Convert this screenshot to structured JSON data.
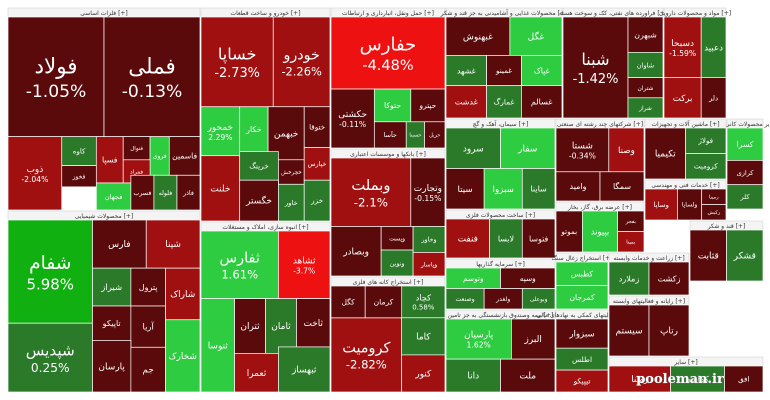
{
  "chart_data": {
    "type": "heatmap",
    "subtype": "treemap",
    "colors": {
      "strong_positive": "#10b010",
      "positive": "#2a7a2a",
      "light_positive": "#2ecc40",
      "neutral": "#888888",
      "negative": "#a01010",
      "dark_negative": "#5a0a0a",
      "strong_negative": "#ee1111"
    },
    "sectors": [
      {
        "title": "[+] فلزات اساسی",
        "tiles": [
          {
            "label": "فولاد",
            "change": "-1.05%",
            "change_value": -1.05
          },
          {
            "label": "فملی",
            "change": "-0.13%",
            "change_value": -0.13
          },
          {
            "label": "ذوب",
            "change": "-2.04%",
            "change_value": -2.04
          },
          {
            "label": "کاوه",
            "change": "",
            "change_value": 1.2
          },
          {
            "label": "فخوز",
            "change": "",
            "change_value": -0.8
          },
          {
            "label": "فسپا",
            "change": "",
            "change_value": -1.5
          },
          {
            "label": "فنوال",
            "change": "",
            "change_value": -0.5
          },
          {
            "label": "فروی",
            "change": "",
            "change_value": 2.0
          },
          {
            "label": "فاسمین",
            "change": "",
            "change_value": -1.1
          },
          {
            "label": "فمراد",
            "change": "",
            "change_value": -2.1
          },
          {
            "label": "فجهان",
            "change": "",
            "change_value": 1.4
          },
          {
            "label": "فسرب",
            "change": "",
            "change_value": -0.4
          },
          {
            "label": "فلوله",
            "change": "",
            "change_value": 0.6
          },
          {
            "label": "فاذر",
            "change": "",
            "change_value": -0.9
          }
        ]
      },
      {
        "title": "[+] خودرو و ساخت قطعات",
        "tiles": [
          {
            "label": "خساپا",
            "change": "-2.73%",
            "change_value": -2.73
          },
          {
            "label": "خودرو",
            "change": "-2.26%",
            "change_value": -2.26
          },
          {
            "label": "خمحور",
            "change": "2.29%",
            "change_value": 2.29
          },
          {
            "label": "خکار",
            "change": "",
            "change_value": 1.5
          },
          {
            "label": "خبهمن",
            "change": "",
            "change_value": -1.2
          },
          {
            "label": "ختوقا",
            "change": "",
            "change_value": -0.7
          },
          {
            "label": "خلنت",
            "change": "",
            "change_value": -1.8
          },
          {
            "label": "خرینگ",
            "change": "",
            "change_value": 0.4
          },
          {
            "label": "خچرخش",
            "change": "",
            "change_value": -0.3
          },
          {
            "label": "خپارس",
            "change": "",
            "change_value": -2.5
          },
          {
            "label": "خگستر",
            "change": "",
            "change_value": -1.0
          },
          {
            "label": "خاور",
            "change": "",
            "change_value": 1.0
          },
          {
            "label": "خزر",
            "change": "",
            "change_value": 0.8
          }
        ]
      },
      {
        "title": "[+] حمل ونقل، انبارداری و ارتباطات",
        "tiles": [
          {
            "label": "حفارس",
            "change": "-4.48%",
            "change_value": -4.48
          },
          {
            "label": "حکشتی",
            "change": "-0.11%",
            "change_value": -0.11
          },
          {
            "label": "حتوکا",
            "change": "",
            "change_value": 1.3
          },
          {
            "label": "حپترو",
            "change": "",
            "change_value": -0.9
          },
          {
            "label": "حآسا",
            "change": "",
            "change_value": -0.6
          },
          {
            "label": "حسینا",
            "change": "",
            "change_value": 0.9
          },
          {
            "label": "حریل",
            "change": "",
            "change_value": -1.4
          }
        ]
      },
      {
        "title": "[+] بانکها و موسسات اعتباری",
        "tiles": [
          {
            "label": "وبملت",
            "change": "-2.1%",
            "change_value": -2.1
          },
          {
            "label": "وتجارت",
            "change": "-0.15%",
            "change_value": -0.15
          },
          {
            "label": "وبصادر",
            "change": "",
            "change_value": -1.3
          },
          {
            "label": "وپست",
            "change": "",
            "change_value": -0.8
          },
          {
            "label": "ونوین",
            "change": "",
            "change_value": 0.5
          },
          {
            "label": "وخاور",
            "change": "",
            "change_value": 1.1
          },
          {
            "label": "وپاسار",
            "change": "",
            "change_value": -1.9
          }
        ]
      },
      {
        "title": "[+] انبوه سازی، املاک و مستغلات",
        "tiles": [
          {
            "label": "ثفارس",
            "change": "1.61%",
            "change_value": 1.61
          },
          {
            "label": "ثشاهد",
            "change": "-3.7%",
            "change_value": -3.7
          },
          {
            "label": "ثنوسا",
            "change": "",
            "change_value": 2.3
          },
          {
            "label": "ثتران",
            "change": "",
            "change_value": -1.0
          },
          {
            "label": "ثامان",
            "change": "",
            "change_value": 0.7
          },
          {
            "label": "ثاخت",
            "change": "",
            "change_value": -0.9
          },
          {
            "label": "ثعمرا",
            "change": "",
            "change_value": -1.6
          },
          {
            "label": "ثبهساز",
            "change": "",
            "change_value": 1.0
          }
        ]
      },
      {
        "title": "[+] محصولات شیمیایی",
        "tiles": [
          {
            "label": "شفام",
            "change": "5.98%",
            "change_value": 5.98
          },
          {
            "label": "شپدیس",
            "change": "0.25%",
            "change_value": 0.25
          },
          {
            "label": "فارس",
            "change": "",
            "change_value": -1.1
          },
          {
            "label": "شپنا",
            "change": "",
            "change_value": -1.7
          },
          {
            "label": "شیراز",
            "change": "",
            "change_value": 0.9
          },
          {
            "label": "پترول",
            "change": "",
            "change_value": -0.6
          },
          {
            "label": "شاراک",
            "change": "",
            "change_value": -2.0
          },
          {
            "label": "تاپیکو",
            "change": "",
            "change_value": -0.4
          },
          {
            "label": "آریا",
            "change": "",
            "change_value": -1.3
          },
          {
            "label": "پارسان",
            "change": "",
            "change_value": -0.8
          },
          {
            "label": "شخارک",
            "change": "",
            "change_value": 1.5
          },
          {
            "label": "جم",
            "change": "",
            "change_value": -0.5
          }
        ]
      },
      {
        "title": "[+] استخراج کانه های فلزی",
        "tiles": [
          {
            "label": "کرومیت",
            "change": "-2.82%",
            "change_value": -2.82
          },
          {
            "label": "کچاد",
            "change": "0.58%",
            "change_value": 0.58
          },
          {
            "label": "کگل",
            "change": "",
            "change_value": -1.2
          },
          {
            "label": "کرمان",
            "change": "",
            "change_value": -0.9
          },
          {
            "label": "کاما",
            "change": "",
            "change_value": 0.9
          },
          {
            "label": "کنور",
            "change": "",
            "change_value": -1.5
          }
        ]
      },
      {
        "title": "[+] محصولات غذایی و آشامیدنی به جز قند و شکر",
        "tiles": [
          {
            "label": "غگل",
            "change": "",
            "change_value": 1.6
          },
          {
            "label": "غبهنوش",
            "change": "",
            "change_value": -1.1
          },
          {
            "label": "غشهد",
            "change": "",
            "change_value": 0.9
          },
          {
            "label": "غمینو",
            "change": "",
            "change_value": -0.4
          },
          {
            "label": "غپاک",
            "change": "",
            "change_value": 2.2
          },
          {
            "label": "غدشت",
            "change": "",
            "change_value": -1.6
          },
          {
            "label": "غمارگ",
            "change": "",
            "change_value": 0.6
          },
          {
            "label": "غسالم",
            "change": "",
            "change_value": -0.8
          }
        ]
      },
      {
        "title": "[+] فراورده های نفتی، کک و سوخت هسته",
        "tiles": [
          {
            "label": "شبنا",
            "change": "-1.42%",
            "change_value": -1.42
          },
          {
            "label": "شبهرن",
            "change": "",
            "change_value": -0.9
          },
          {
            "label": "شاوان",
            "change": "",
            "change_value": 1.0
          },
          {
            "label": "شتران",
            "change": "",
            "change_value": -0.6
          },
          {
            "label": "شراز",
            "change": "",
            "change_value": 0.4
          }
        ]
      },
      {
        "title": "[+] سیمان، آهک و گچ",
        "tiles": [
          {
            "label": "سرود",
            "change": "",
            "change_value": 0.9
          },
          {
            "label": "سفار",
            "change": "",
            "change_value": 1.8
          },
          {
            "label": "سیتا",
            "change": "",
            "change_value": -0.9
          },
          {
            "label": "سبزوا",
            "change": "",
            "change_value": 2.4
          },
          {
            "label": "ساینا",
            "change": "",
            "change_value": 1.2
          }
        ]
      },
      {
        "title": "[+] شرکتهای چند رشته ای صنعتی",
        "tiles": [
          {
            "label": "شستا",
            "change": "-0.34%",
            "change_value": -0.34
          },
          {
            "label": "وامید",
            "change": "",
            "change_value": -1.3
          },
          {
            "label": "وصنا",
            "change": "",
            "change_value": -2.2
          },
          {
            "label": "سمگا",
            "change": "",
            "change_value": -0.7
          }
        ]
      },
      {
        "title": "[+] مواد و محصولات دارویی",
        "tiles": [
          {
            "label": "برکت",
            "change": "",
            "change_value": -1.5
          },
          {
            "label": "دلر",
            "change": "",
            "change_value": -0.8
          },
          {
            "label": "دسبحا",
            "change": "-1.59%",
            "change_value": -1.59
          },
          {
            "label": "دعبید",
            "change": "",
            "change_value": 1.1
          }
        ]
      },
      {
        "title": "[+] سایر محصولات کانی غیرفلزی",
        "tiles": [
          {
            "label": "کسرا",
            "change": "",
            "change_value": 1.3
          },
          {
            "label": "کرازی",
            "change": "",
            "change_value": -0.7
          },
          {
            "label": "کلر",
            "change": "",
            "change_value": 0.9
          }
        ]
      },
      {
        "title": "[+] ماشین آلات و تجهیزات",
        "tiles": [
          {
            "label": "تکیمیا",
            "change": "",
            "change_value": -1.1
          },
          {
            "label": "فولاژ",
            "change": "",
            "change_value": 0.8
          },
          {
            "label": "کرومیت",
            "change": "",
            "change_value": 0.5
          }
        ]
      },
      {
        "title": "[+] خدمات فنی و مهندسی",
        "tiles": [
          {
            "label": "وساپا",
            "change": "",
            "change_value": -1.9
          },
          {
            "label": "ولساپا",
            "change": "",
            "change_value": -0.9
          },
          {
            "label": "رمپنا",
            "change": "",
            "change_value": -1.4
          },
          {
            "label": "رکیش",
            "change": "",
            "change_value": -0.5
          }
        ]
      },
      {
        "title": "[+] عرضه برق، گاز، بخار",
        "tiles": [
          {
            "label": "بموتو",
            "change": "",
            "change_value": -0.6
          },
          {
            "label": "بپیوند",
            "change": "",
            "change_value": 1.6
          },
          {
            "label": "بفجر",
            "change": "",
            "change_value": -1.1
          },
          {
            "label": "بمپنا",
            "change": "",
            "change_value": -1.8
          }
        ]
      },
      {
        "title": "[+] ساخت محصولات فلزی",
        "tiles": [
          {
            "label": "فنفت",
            "change": "",
            "change_value": -2.1
          },
          {
            "label": "لابسا",
            "change": "",
            "change_value": 0.6
          },
          {
            "label": "فتوسا",
            "change": "",
            "change_value": -0.7
          }
        ]
      },
      {
        "title": "[+] سرمایه گذاریها",
        "tiles": [
          {
            "label": "وتوسم",
            "change": "",
            "change_value": 2.1
          },
          {
            "label": "وسپه",
            "change": "",
            "change_value": -1.3
          },
          {
            "label": "وصنعت",
            "change": "",
            "change_value": 0.9
          },
          {
            "label": "ولغدر",
            "change": "",
            "change_value": -1.2
          },
          {
            "label": "وبوعلی",
            "change": "",
            "change_value": 1.0
          }
        ]
      },
      {
        "title": "[+] استخراج زغال سنگ",
        "tiles": [
          {
            "label": "کطبس",
            "change": "",
            "change_value": 1.7
          },
          {
            "label": "کمرجان",
            "change": "",
            "change_value": 1.9
          }
        ]
      },
      {
        "title": "[+] بیمه وصندوق بازنشستگی به جز تامین",
        "tiles": [
          {
            "label": "پارسیان",
            "change": "1.62%",
            "change_value": 1.62
          },
          {
            "label": "البرز",
            "change": "",
            "change_value": -0.9
          },
          {
            "label": "دانا",
            "change": "",
            "change_value": 1.2
          },
          {
            "label": "ملت",
            "change": "",
            "change_value": -1.1
          }
        ]
      },
      {
        "title": "[+] فعالیتهای کمکی به نهادهای مالی",
        "tiles": [
          {
            "label": "سبزوار",
            "change": "",
            "change_value": -1.2
          },
          {
            "label": "اطلس",
            "change": "",
            "change_value": 0.9
          },
          {
            "label": "تیپیکو",
            "change": "",
            "change_value": -1.5
          }
        ]
      },
      {
        "title": "[+] زراعت و خدمات وابسته",
        "tiles": [
          {
            "label": "زملارد",
            "change": "",
            "change_value": 1.1
          },
          {
            "label": "زکشت",
            "change": "",
            "change_value": -0.9
          }
        ]
      },
      {
        "title": "[+] قند و شکر",
        "tiles": [
          {
            "label": "قثابت",
            "change": "",
            "change_value": -1.1
          },
          {
            "label": "قشکر",
            "change": "",
            "change_value": 0.7
          }
        ]
      },
      {
        "title": "[+] رایانه و فعالیتهای وابسته",
        "tiles": [
          {
            "label": "سیستم",
            "change": "",
            "change_value": -1.2
          },
          {
            "label": "رتاپ",
            "change": "",
            "change_value": -0.8
          }
        ]
      },
      {
        "title": "[+] سایر",
        "tiles": [
          {
            "label": "رمپنا",
            "change": "",
            "change_value": -1.5
          },
          {
            "label": "کماسه",
            "change": "",
            "change_value": 0.8
          },
          {
            "label": "افق",
            "change": "",
            "change_value": -0.9
          }
        ]
      }
    ]
  },
  "watermark": "pooleman.ir"
}
